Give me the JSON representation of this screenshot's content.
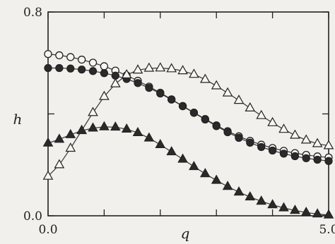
{
  "chart_data": {
    "type": "line",
    "title": "",
    "xlabel": "q",
    "ylabel": "h",
    "xlim": [
      0,
      5
    ],
    "ylim": [
      0,
      0.8
    ],
    "x_ticks": [
      0,
      1,
      2,
      3,
      4,
      5
    ],
    "x_tick_labels": [
      "0.0",
      "",
      "",
      "",
      "",
      "5.0"
    ],
    "y_ticks": [
      0,
      0.4,
      0.8
    ],
    "y_tick_labels": [
      "0.0",
      "",
      "0.8"
    ],
    "grid": false,
    "legend": "none",
    "series": [
      {
        "marker": "open-circle",
        "x": [
          0.0,
          0.2,
          0.4,
          0.6,
          0.8,
          1.0,
          1.2,
          1.4,
          1.6,
          1.8,
          2.0,
          2.2,
          2.4,
          2.6,
          2.8,
          3.0,
          3.2,
          3.4,
          3.6,
          3.8,
          4.0,
          4.2,
          4.4,
          4.6,
          4.8,
          5.0
        ],
        "y": [
          0.635,
          0.63,
          0.623,
          0.613,
          0.601,
          0.587,
          0.57,
          0.551,
          0.53,
          0.507,
          0.483,
          0.457,
          0.431,
          0.405,
          0.38,
          0.355,
          0.332,
          0.312,
          0.294,
          0.279,
          0.266,
          0.255,
          0.246,
          0.239,
          0.233,
          0.229
        ]
      },
      {
        "marker": "filled-circle",
        "x": [
          0.0,
          0.2,
          0.4,
          0.6,
          0.8,
          1.0,
          1.2,
          1.4,
          1.6,
          1.8,
          2.0,
          2.2,
          2.4,
          2.6,
          2.8,
          3.0,
          3.2,
          3.4,
          3.6,
          3.8,
          4.0,
          4.2,
          4.4,
          4.6,
          4.8,
          5.0
        ],
        "y": [
          0.58,
          0.58,
          0.578,
          0.574,
          0.568,
          0.56,
          0.55,
          0.537,
          0.521,
          0.502,
          0.48,
          0.456,
          0.43,
          0.404,
          0.378,
          0.352,
          0.328,
          0.306,
          0.287,
          0.27,
          0.256,
          0.244,
          0.234,
          0.226,
          0.22,
          0.215
        ]
      },
      {
        "marker": "open-triangle",
        "x": [
          0.0,
          0.2,
          0.4,
          0.6,
          0.8,
          1.0,
          1.2,
          1.4,
          1.6,
          1.8,
          2.0,
          2.2,
          2.4,
          2.6,
          2.8,
          3.0,
          3.2,
          3.4,
          3.6,
          3.8,
          4.0,
          4.2,
          4.4,
          4.6,
          4.8,
          5.0
        ],
        "y": [
          0.155,
          0.2,
          0.265,
          0.335,
          0.405,
          0.468,
          0.518,
          0.553,
          0.572,
          0.579,
          0.58,
          0.577,
          0.569,
          0.555,
          0.535,
          0.51,
          0.482,
          0.453,
          0.423,
          0.393,
          0.365,
          0.339,
          0.316,
          0.297,
          0.283,
          0.275
        ]
      },
      {
        "marker": "filled-triangle",
        "x": [
          0.0,
          0.2,
          0.4,
          0.6,
          0.8,
          1.0,
          1.2,
          1.4,
          1.6,
          1.8,
          2.0,
          2.2,
          2.4,
          2.6,
          2.8,
          3.0,
          3.2,
          3.4,
          3.6,
          3.8,
          4.0,
          4.2,
          4.4,
          4.6,
          4.8,
          5.0
        ],
        "y": [
          0.285,
          0.3,
          0.318,
          0.334,
          0.344,
          0.349,
          0.348,
          0.34,
          0.326,
          0.305,
          0.279,
          0.251,
          0.222,
          0.193,
          0.165,
          0.139,
          0.115,
          0.093,
          0.074,
          0.057,
          0.043,
          0.031,
          0.021,
          0.013,
          0.007,
          0.003
        ]
      }
    ]
  }
}
